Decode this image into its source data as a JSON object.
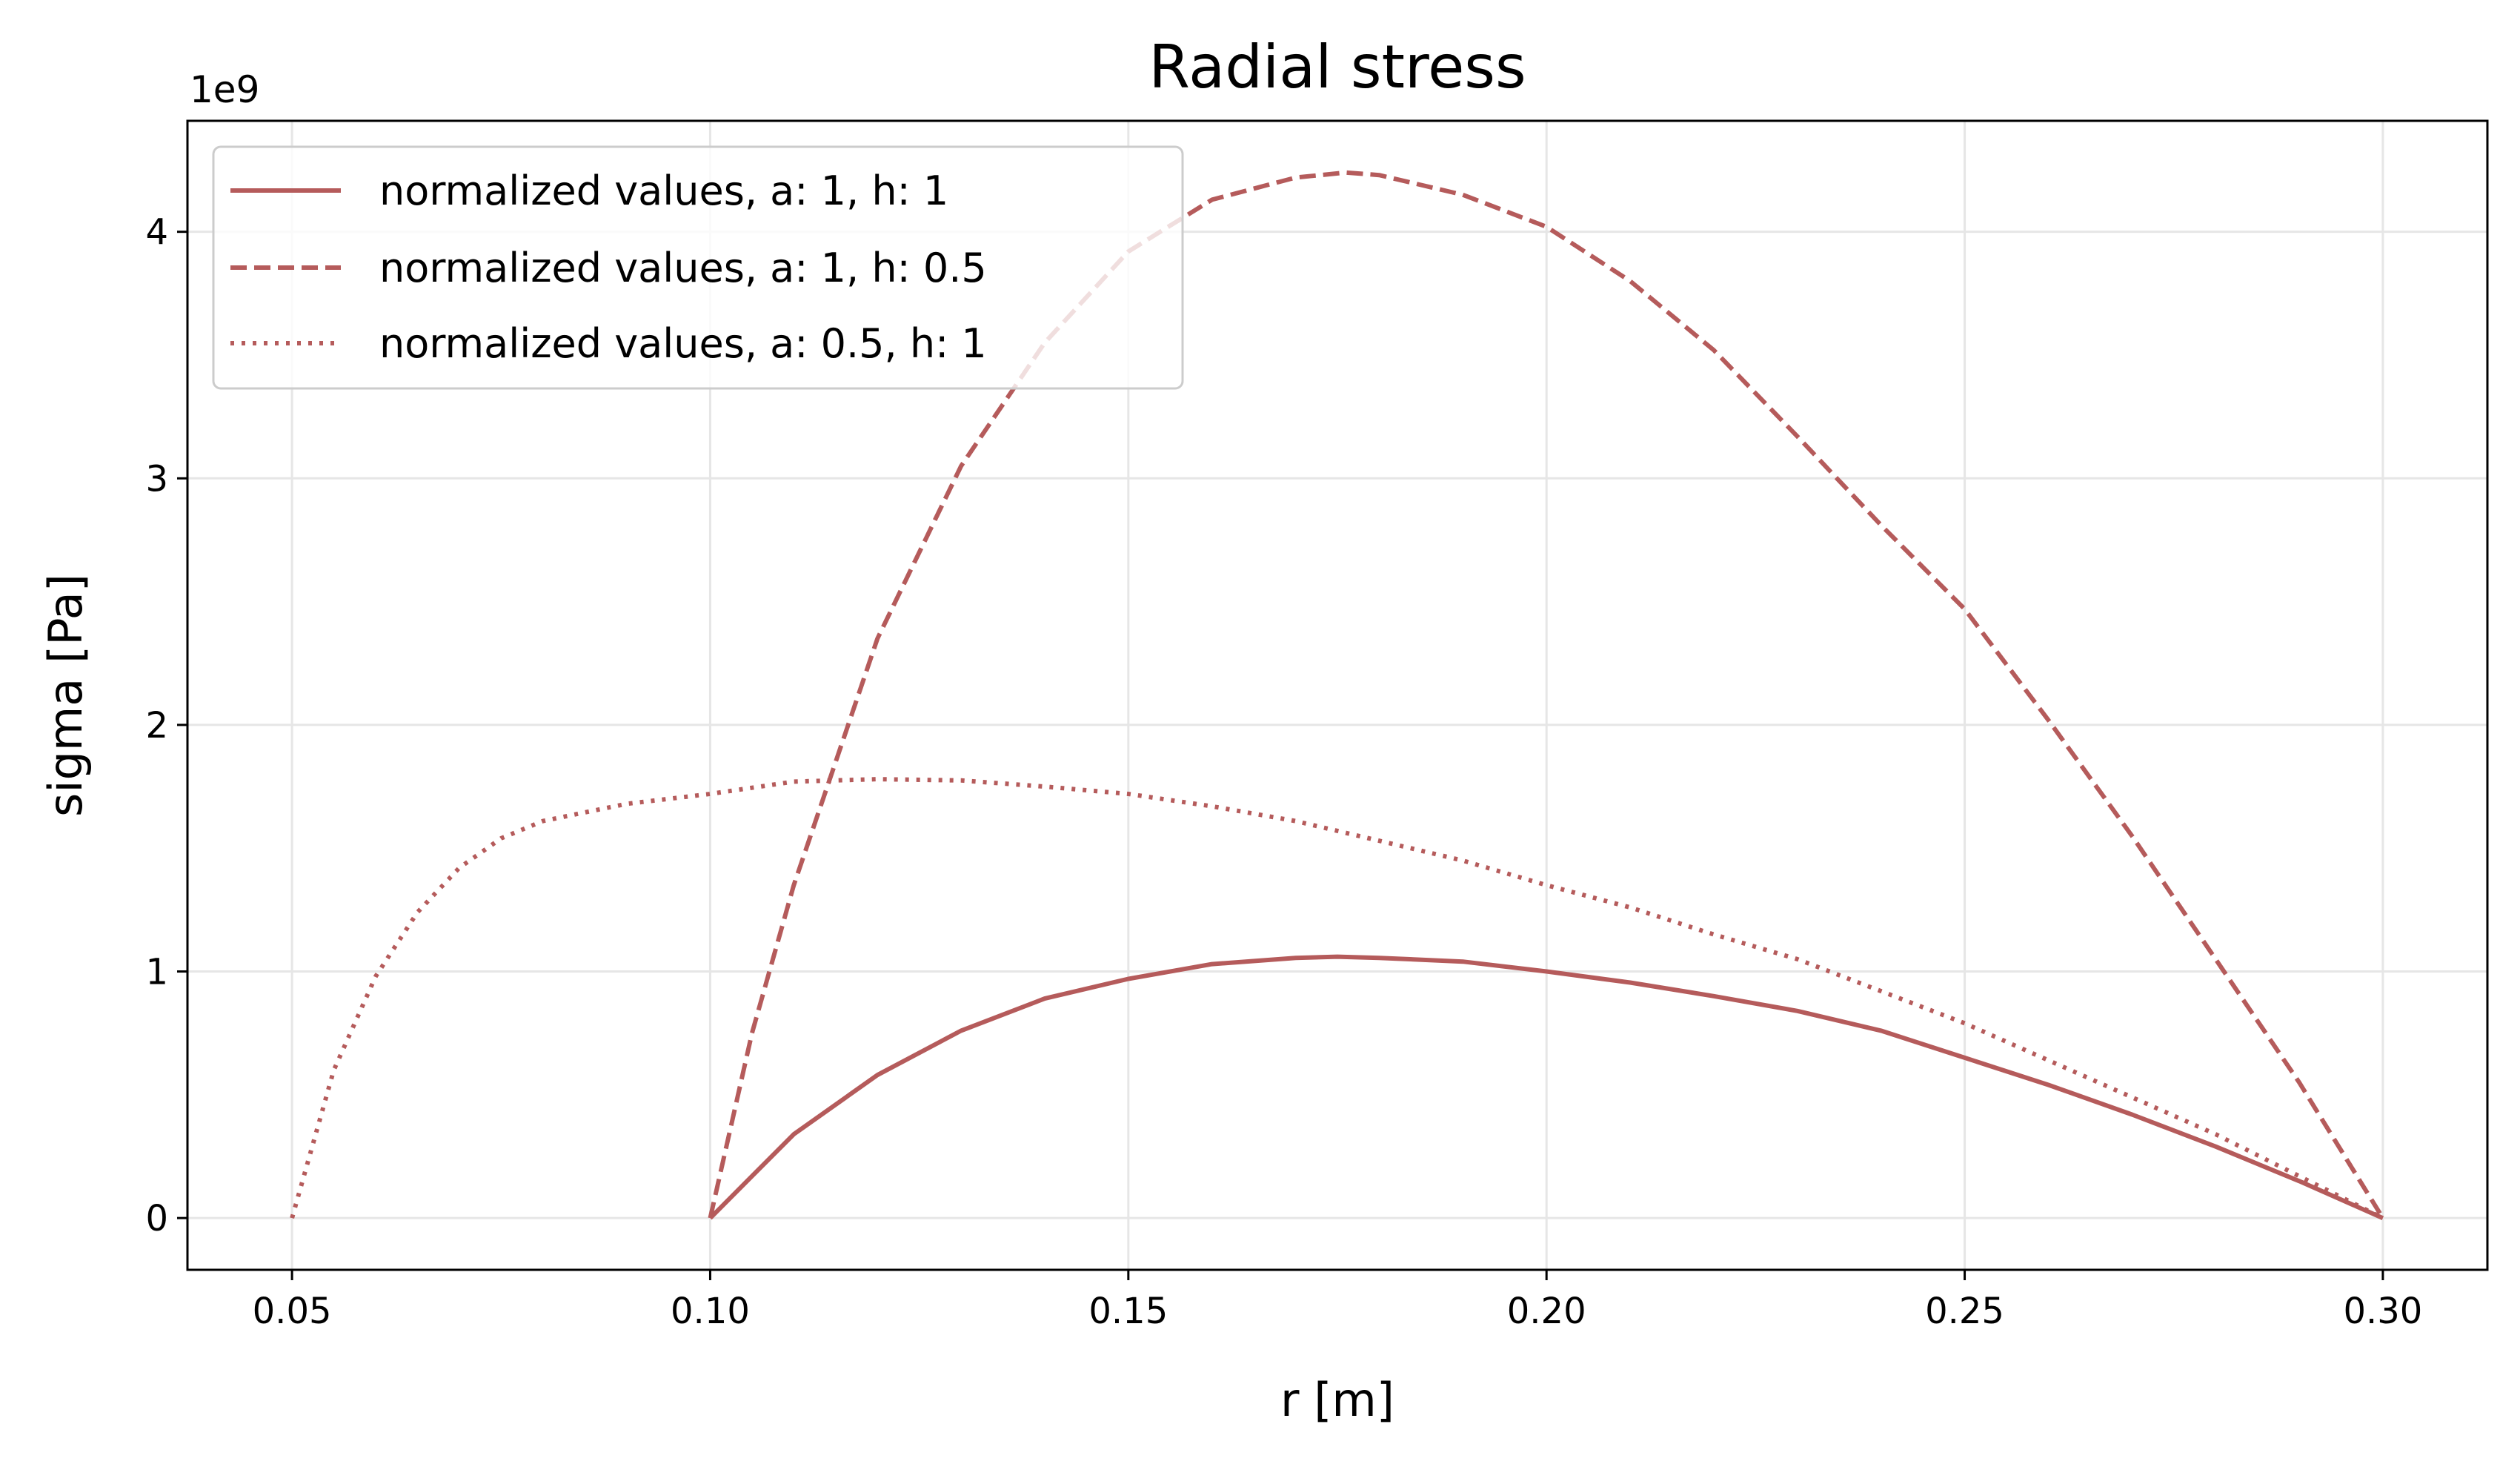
{
  "chart_data": {
    "type": "line",
    "title": "Radial stress",
    "xlabel": "r [m]",
    "ylabel": "sigma [Pa]",
    "y_offset_label": "1e9",
    "xlim": [
      0.0375,
      0.3125
    ],
    "ylim": [
      -0.21,
      4.45
    ],
    "y_scale_factor": 1000000000,
    "grid": true,
    "legend_position": "top-left",
    "x_ticks": [
      0.05,
      0.1,
      0.15,
      0.2,
      0.25,
      0.3
    ],
    "x_tick_labels": [
      "0.05",
      "0.10",
      "0.15",
      "0.20",
      "0.25",
      "0.30"
    ],
    "y_ticks": [
      0,
      1,
      2,
      3,
      4
    ],
    "y_tick_labels": [
      "0",
      "1",
      "2",
      "3",
      "4"
    ],
    "colors": {
      "series": "#b55b5b",
      "grid": "#e6e6e6",
      "axes": "#000000"
    },
    "series": [
      {
        "name": "normalized values, a: 1, h: 1",
        "style": "solid",
        "x": [
          0.1,
          0.11,
          0.12,
          0.13,
          0.14,
          0.15,
          0.16,
          0.17,
          0.175,
          0.18,
          0.19,
          0.2,
          0.21,
          0.22,
          0.23,
          0.24,
          0.25,
          0.26,
          0.27,
          0.28,
          0.29,
          0.3
        ],
        "y": [
          0.0,
          0.34,
          0.58,
          0.76,
          0.89,
          0.97,
          1.03,
          1.055,
          1.06,
          1.055,
          1.04,
          1.0,
          0.955,
          0.9,
          0.84,
          0.76,
          0.65,
          0.54,
          0.42,
          0.29,
          0.15,
          0.0
        ]
      },
      {
        "name": "normalized values, a: 1, h: 0.5",
        "style": "dashed",
        "x": [
          0.1,
          0.105,
          0.11,
          0.115,
          0.12,
          0.13,
          0.14,
          0.15,
          0.16,
          0.17,
          0.176,
          0.18,
          0.19,
          0.2,
          0.21,
          0.22,
          0.23,
          0.24,
          0.25,
          0.26,
          0.27,
          0.28,
          0.29,
          0.3
        ],
        "y": [
          0.0,
          0.75,
          1.35,
          1.85,
          2.35,
          3.05,
          3.55,
          3.92,
          4.13,
          4.22,
          4.24,
          4.23,
          4.15,
          4.02,
          3.8,
          3.52,
          3.17,
          2.81,
          2.47,
          2.02,
          1.55,
          1.05,
          0.55,
          0.0
        ]
      },
      {
        "name": "normalized values, a: 0.5, h: 1",
        "style": "dotted",
        "x": [
          0.05,
          0.055,
          0.06,
          0.065,
          0.07,
          0.075,
          0.08,
          0.09,
          0.1,
          0.11,
          0.12,
          0.13,
          0.14,
          0.15,
          0.16,
          0.17,
          0.18,
          0.19,
          0.2,
          0.21,
          0.22,
          0.23,
          0.24,
          0.25,
          0.26,
          0.27,
          0.28,
          0.29,
          0.3
        ],
        "y": [
          0.0,
          0.6,
          0.98,
          1.24,
          1.42,
          1.54,
          1.61,
          1.68,
          1.72,
          1.77,
          1.78,
          1.775,
          1.75,
          1.72,
          1.67,
          1.61,
          1.53,
          1.45,
          1.35,
          1.26,
          1.15,
          1.05,
          0.92,
          0.79,
          0.64,
          0.49,
          0.34,
          0.17,
          0.0
        ]
      }
    ]
  }
}
